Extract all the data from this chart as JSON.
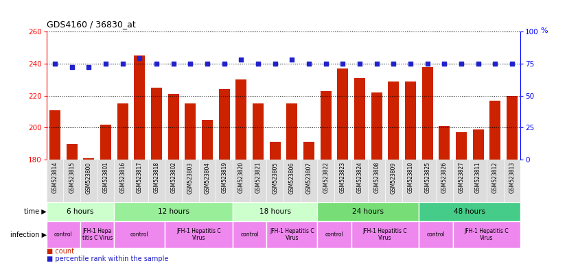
{
  "title": "GDS4160 / 36830_at",
  "samples": [
    "GSM523814",
    "GSM523815",
    "GSM523800",
    "GSM523801",
    "GSM523816",
    "GSM523817",
    "GSM523818",
    "GSM523802",
    "GSM523803",
    "GSM523804",
    "GSM523819",
    "GSM523820",
    "GSM523821",
    "GSM523805",
    "GSM523806",
    "GSM523807",
    "GSM523822",
    "GSM523823",
    "GSM523824",
    "GSM523808",
    "GSM523809",
    "GSM523810",
    "GSM523825",
    "GSM523826",
    "GSM523827",
    "GSM523811",
    "GSM523812",
    "GSM523813"
  ],
  "counts": [
    211,
    190,
    181,
    202,
    215,
    245,
    225,
    221,
    215,
    205,
    224,
    230,
    215,
    191,
    215,
    191,
    223,
    237,
    231,
    222,
    229,
    229,
    238,
    201,
    197,
    199,
    217,
    220
  ],
  "percentiles": [
    75,
    72,
    72,
    75,
    75,
    79,
    75,
    75,
    75,
    75,
    75,
    78,
    75,
    75,
    78,
    75,
    75,
    75,
    75,
    75,
    75,
    75,
    75,
    75,
    75,
    75,
    75,
    75
  ],
  "ylim_left": [
    180,
    260
  ],
  "ylim_right": [
    0,
    100
  ],
  "yticks_left": [
    180,
    200,
    220,
    240,
    260
  ],
  "yticks_right": [
    0,
    25,
    50,
    75,
    100
  ],
  "bar_color": "#cc2200",
  "dot_color": "#2222cc",
  "gridline_color": "#555555",
  "time_groups": [
    {
      "label": "6 hours",
      "start": 0,
      "end": 3,
      "color": "#ccffcc"
    },
    {
      "label": "12 hours",
      "start": 4,
      "end": 10,
      "color": "#99ee99"
    },
    {
      "label": "18 hours",
      "start": 11,
      "end": 15,
      "color": "#ccffcc"
    },
    {
      "label": "24 hours",
      "start": 16,
      "end": 21,
      "color": "#77dd77"
    },
    {
      "label": "48 hours",
      "start": 22,
      "end": 27,
      "color": "#44cc88"
    }
  ],
  "infection_groups": [
    {
      "label": "control",
      "start": 0,
      "end": 1,
      "color": "#ee88ee"
    },
    {
      "label": "JFH-1 Hepa\ntitis C Virus",
      "start": 2,
      "end": 3,
      "color": "#ee88ee"
    },
    {
      "label": "control",
      "start": 4,
      "end": 6,
      "color": "#ee88ee"
    },
    {
      "label": "JFH-1 Hepatitis C\nVirus",
      "start": 7,
      "end": 10,
      "color": "#ee88ee"
    },
    {
      "label": "control",
      "start": 11,
      "end": 12,
      "color": "#ee88ee"
    },
    {
      "label": "JFH-1 Hepatitis C\nVirus",
      "start": 13,
      "end": 15,
      "color": "#ee88ee"
    },
    {
      "label": "control",
      "start": 16,
      "end": 17,
      "color": "#ee88ee"
    },
    {
      "label": "JFH-1 Hepatitis C\nVirus",
      "start": 18,
      "end": 21,
      "color": "#ee88ee"
    },
    {
      "label": "control",
      "start": 22,
      "end": 23,
      "color": "#ee88ee"
    },
    {
      "label": "JFH-1 Hepatitis C\nVirus",
      "start": 24,
      "end": 27,
      "color": "#ee88ee"
    }
  ],
  "label_arrow": "▶",
  "legend_count_color": "#cc2200",
  "legend_pct_color": "#2222cc",
  "xtick_bg_color": "#dddddd",
  "fig_width": 8.26,
  "fig_height": 3.84,
  "fig_dpi": 100
}
